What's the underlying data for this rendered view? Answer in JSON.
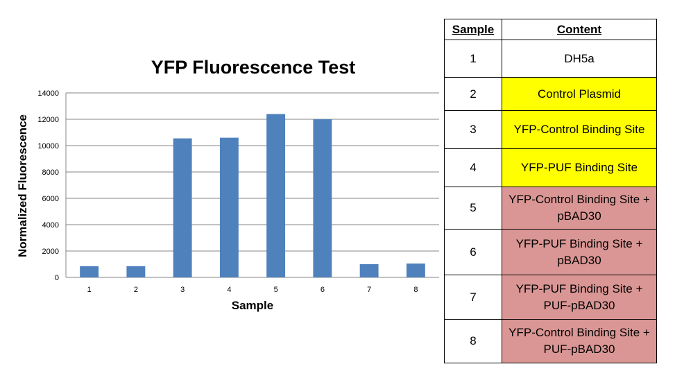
{
  "chart_data": {
    "type": "bar",
    "title": "YFP Fluorescence Test",
    "xlabel": "Sample",
    "ylabel": "Normalized Fluorescence",
    "categories": [
      "1",
      "2",
      "3",
      "4",
      "5",
      "6",
      "7",
      "8"
    ],
    "values": [
      850,
      850,
      10550,
      10600,
      12400,
      12000,
      1000,
      1050
    ],
    "ylim": [
      0,
      14000
    ],
    "yticks": [
      "0",
      "2000",
      "4000",
      "6000",
      "8000",
      "10000",
      "12000",
      "14000"
    ],
    "grid": true,
    "legend": "none",
    "bar_color": "#4F81BD"
  },
  "table": {
    "headers": {
      "sample": "Sample",
      "content": "Content"
    },
    "rows": [
      {
        "sample": "1",
        "content": "DH5a",
        "color": "#ffffff"
      },
      {
        "sample": "2",
        "content": "Control Plasmid",
        "color": "#ffff00"
      },
      {
        "sample": "3",
        "content": "YFP-Control Binding Site",
        "color": "#ffff00"
      },
      {
        "sample": "4",
        "content": "YFP-PUF Binding Site",
        "color": "#ffff00"
      },
      {
        "sample": "5",
        "content": "YFP-Control Binding Site + pBAD30",
        "color": "#da9694"
      },
      {
        "sample": "6",
        "content": "YFP-PUF Binding Site + pBAD30",
        "color": "#da9694"
      },
      {
        "sample": "7",
        "content": "YFP-PUF Binding Site + PUF-pBAD30",
        "color": "#da9694"
      },
      {
        "sample": "8",
        "content": "YFP-Control Binding Site + PUF-pBAD30",
        "color": "#da9694"
      }
    ]
  }
}
